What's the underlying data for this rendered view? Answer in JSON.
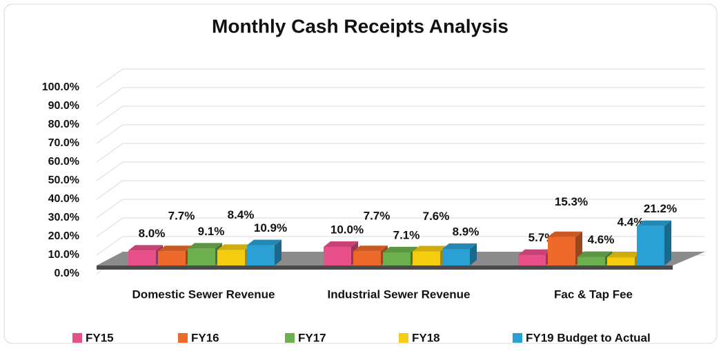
{
  "chart_data": {
    "type": "bar3d",
    "title": "Monthly Cash Receipts Analysis",
    "categories": [
      "Domestic Sewer Revenue",
      "Industrial Sewer Revenue",
      "Fac & Tap Fee"
    ],
    "series": [
      {
        "name": "FY15",
        "color": "#e8508a",
        "values": [
          8.0,
          10.0,
          5.7
        ],
        "value_labels": [
          "8.0%",
          "10.0%",
          "5.7%"
        ]
      },
      {
        "name": "FY16",
        "color": "#ee6a2a",
        "values": [
          7.7,
          7.7,
          15.3
        ],
        "value_labels": [
          "7.7%",
          "7.7%",
          "15.3%"
        ]
      },
      {
        "name": "FY17",
        "color": "#6cb04e",
        "values": [
          9.1,
          7.1,
          4.6
        ],
        "value_labels": [
          "9.1%",
          "7.1%",
          "4.6%"
        ]
      },
      {
        "name": "FY18",
        "color": "#f4cc10",
        "values": [
          8.4,
          7.6,
          4.4
        ],
        "value_labels": [
          "8.4%",
          "7.6%",
          "4.4%"
        ]
      },
      {
        "name": "FY19 Budget to Actual",
        "color": "#2aa0d4",
        "values": [
          10.9,
          8.9,
          21.2
        ],
        "value_labels": [
          "10.9%",
          "8.9%",
          "21.2%"
        ]
      }
    ],
    "ylim": [
      0,
      100
    ],
    "yticks": [
      {
        "value": 0,
        "label": "0.0%"
      },
      {
        "value": 10,
        "label": "10.0%"
      },
      {
        "value": 20,
        "label": "20.0%"
      },
      {
        "value": 30,
        "label": "30.0%"
      },
      {
        "value": 40,
        "label": "40.0%"
      },
      {
        "value": 50,
        "label": "50.0%"
      },
      {
        "value": 60,
        "label": "60.0%"
      },
      {
        "value": 70,
        "label": "70.0%"
      },
      {
        "value": 80,
        "label": "80.0%"
      },
      {
        "value": 90,
        "label": "90.0%"
      },
      {
        "value": 100,
        "label": "100.0%"
      }
    ],
    "grid": true,
    "legend": "bottom"
  }
}
